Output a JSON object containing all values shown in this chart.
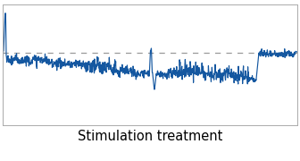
{
  "title": "Stimulation treatment",
  "title_fontsize": 10.5,
  "line_color": "#1457a0",
  "dashed_line_color": "#999999",
  "dashed_line_y": 0.6,
  "background_color": "#ffffff",
  "border_color": "#aaaaaa",
  "xlim": [
    0,
    1
  ],
  "ylim": [
    0.0,
    1.0
  ]
}
